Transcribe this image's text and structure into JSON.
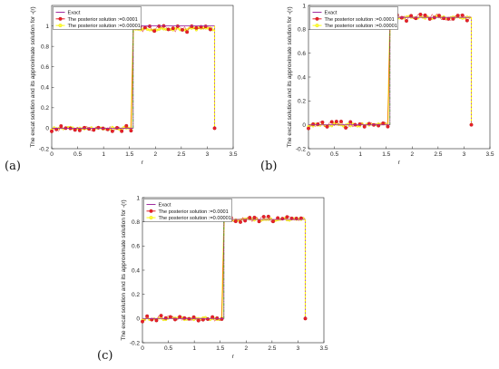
{
  "colors": {
    "exact": "#a02ca0",
    "posterior_a": "#e8202a",
    "posterior_b": "#ffff00",
    "marker_a_fill": "#e8202a",
    "marker_b_fill": "#ffff33",
    "jump_green": "#3a9a1a"
  },
  "chart_data": [
    {
      "type": "line",
      "panel_label": "(a)",
      "xlabel": "r",
      "ylabel": "The excat solution and its approximate solution for   -(r)",
      "xlim": [
        0,
        3.5
      ],
      "ylim": [
        -0.2,
        1.2
      ],
      "x_ticks": [
        "0",
        "0.5",
        "1",
        "1.5",
        "2",
        "2.5",
        "3",
        "3.5"
      ],
      "y_ticks": [
        "-0.2",
        "0",
        "0.2",
        "0.4",
        "0.6",
        "0.8",
        "1"
      ],
      "y_tick_values": [
        -0.2,
        0,
        0.2,
        0.4,
        0.6,
        0.8,
        1.0
      ],
      "legend_location": "top-left",
      "grid": false,
      "series": [
        {
          "name": "Exact",
          "x": [
            0,
            1.5708,
            1.5708,
            3.1416,
            3.1416
          ],
          "y": [
            0,
            0,
            1.0,
            1.0,
            0
          ]
        },
        {
          "name": "The posterior solution :=0.0001",
          "level_low": 0.0,
          "level_high": 0.97,
          "noise": 0.03
        },
        {
          "name": "The posterior solution :=0.00001",
          "level_low": 0.0,
          "level_high": 0.97,
          "noise": 0.012
        }
      ]
    },
    {
      "type": "line",
      "panel_label": "(b)",
      "xlabel": "r",
      "ylabel": "The excat solution and its approximate solution for   -(r)",
      "xlim": [
        0,
        3.5
      ],
      "ylim": [
        -0.2,
        1.0
      ],
      "x_ticks": [
        "0",
        "0.5",
        "1",
        "1.5",
        "2",
        "2.5",
        "3",
        "3.5"
      ],
      "y_ticks": [
        "-0.2",
        "0",
        "0.2",
        "0.4",
        "0.6",
        "0.8",
        "1"
      ],
      "y_tick_values": [
        -0.2,
        0,
        0.2,
        0.4,
        0.6,
        0.8,
        1.0
      ],
      "legend_location": "top-left",
      "grid": false,
      "series": [
        {
          "name": "Exact",
          "x": [
            0,
            1.5708,
            1.5708,
            3.1416,
            3.1416
          ],
          "y": [
            0,
            0,
            0.9,
            0.9,
            0
          ]
        },
        {
          "name": "The posterior solution :=0.0001",
          "level_low": 0.0,
          "level_high": 0.9,
          "noise": 0.03
        },
        {
          "name": "The posterior solution :=0.00001",
          "level_low": 0.0,
          "level_high": 0.9,
          "noise": 0.012
        }
      ]
    },
    {
      "type": "line",
      "panel_label": "(c)",
      "xlabel": "r",
      "ylabel": "The excat solution and its approximate solution for   -(r)",
      "xlim": [
        0,
        3.5
      ],
      "ylim": [
        -0.2,
        1.0
      ],
      "x_ticks": [
        "0",
        "0.5",
        "1",
        "1.5",
        "2",
        "2.5",
        "3",
        "3.5"
      ],
      "y_ticks": [
        "-0.2",
        "0",
        "0.2",
        "0.4",
        "0.6",
        "0.8",
        "1"
      ],
      "y_tick_values": [
        -0.2,
        0,
        0.2,
        0.4,
        0.6,
        0.8,
        1.0
      ],
      "legend_location": "top-left",
      "grid": false,
      "series": [
        {
          "name": "Exact",
          "x": [
            0,
            1.5708,
            1.5708,
            3.1416,
            3.1416
          ],
          "y": [
            0,
            0,
            0.82,
            0.82,
            0
          ]
        },
        {
          "name": "The posterior solution :=0.0001",
          "level_low": 0.0,
          "level_high": 0.82,
          "noise": 0.025
        },
        {
          "name": "The posterior solution :=0.00001",
          "level_low": 0.0,
          "level_high": 0.82,
          "noise": 0.01
        }
      ]
    }
  ]
}
